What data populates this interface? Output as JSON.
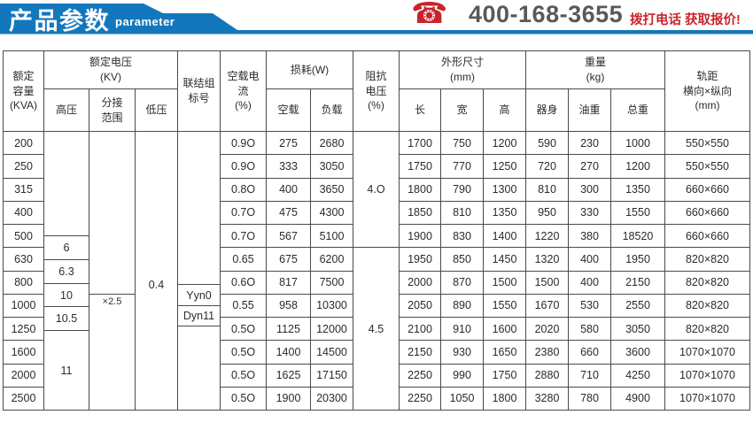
{
  "banner": {
    "title": "产品参数",
    "subtitle": "parameter",
    "phone_icon": "telephone-icon",
    "phone_number": "400-168-3655",
    "cta_text": "拨打电话 获取报价!",
    "colors": {
      "ribbon_blue": "#1377bd",
      "cta_red": "#c8242b",
      "phone_gray": "#58595b"
    }
  },
  "table": {
    "headers": {
      "rated_capacity": "额定\n容量\n(KVA)",
      "rated_voltage_group": "额定电压\n(KV)",
      "high_voltage": "高压",
      "tap_range": "分接\n范围",
      "low_voltage": "低压",
      "connection_group": "联结组\n标号",
      "no_load_current": "空载电\n流\n(%)",
      "loss_group": "损耗(W)",
      "loss_no_load": "空载",
      "loss_load": "负载",
      "impedance_voltage": "阻抗\n电压\n(%)",
      "dimensions_group": "外形尺寸\n(mm)",
      "dim_length": "长",
      "dim_width": "宽",
      "dim_height": "高",
      "weight_group": "重量\n(kg)",
      "weight_body": "器身",
      "weight_oil": "油重",
      "weight_total": "总重",
      "gauge": "轨距\n横向×纵向\n(mm)"
    },
    "merged_cells": {
      "high_voltage_values": [
        "6",
        "6.3",
        "10",
        "10.5",
        "11"
      ],
      "tap_range_value": "×2.5",
      "low_voltage_value": "0.4",
      "connection_values": [
        "Yyn0",
        "Dyn11"
      ],
      "impedance_values": [
        "4.O",
        "4.5"
      ]
    },
    "rows": [
      [
        "200",
        "0.9O",
        "275",
        "2680",
        "1700",
        "750",
        "1200",
        "590",
        "230",
        "1000",
        "550×550"
      ],
      [
        "250",
        "0.9O",
        "333",
        "3050",
        "1750",
        "770",
        "1250",
        "720",
        "270",
        "1200",
        "550×550"
      ],
      [
        "315",
        "0.8O",
        "400",
        "3650",
        "1800",
        "790",
        "1300",
        "810",
        "300",
        "1350",
        "660×660"
      ],
      [
        "400",
        "0.7O",
        "475",
        "4300",
        "1850",
        "810",
        "1350",
        "950",
        "330",
        "1550",
        "660×660"
      ],
      [
        "500",
        "0.7O",
        "567",
        "5100",
        "1900",
        "830",
        "1400",
        "1220",
        "380",
        "18520",
        "660×660"
      ],
      [
        "630",
        "0.65",
        "675",
        "6200",
        "1950",
        "850",
        "1450",
        "1320",
        "400",
        "1950",
        "820×820"
      ],
      [
        "800",
        "0.6O",
        "817",
        "7500",
        "2000",
        "870",
        "1500",
        "1500",
        "400",
        "2150",
        "820×820"
      ],
      [
        "1000",
        "0.55",
        "958",
        "10300",
        "2050",
        "890",
        "1550",
        "1670",
        "530",
        "2550",
        "820×820"
      ],
      [
        "1250",
        "0.5O",
        "1125",
        "12000",
        "2100",
        "910",
        "1600",
        "2020",
        "580",
        "3050",
        "820×820"
      ],
      [
        "1600",
        "0.5O",
        "1400",
        "14500",
        "2150",
        "930",
        "1650",
        "2380",
        "660",
        "3600",
        "1070×1070"
      ],
      [
        "2000",
        "0.5O",
        "1625",
        "17150",
        "2250",
        "990",
        "1750",
        "2880",
        "710",
        "4250",
        "1070×1070"
      ],
      [
        "2500",
        "0.5O",
        "1900",
        "20300",
        "2250",
        "1050",
        "1800",
        "3280",
        "780",
        "4900",
        "1070×1070"
      ]
    ]
  }
}
